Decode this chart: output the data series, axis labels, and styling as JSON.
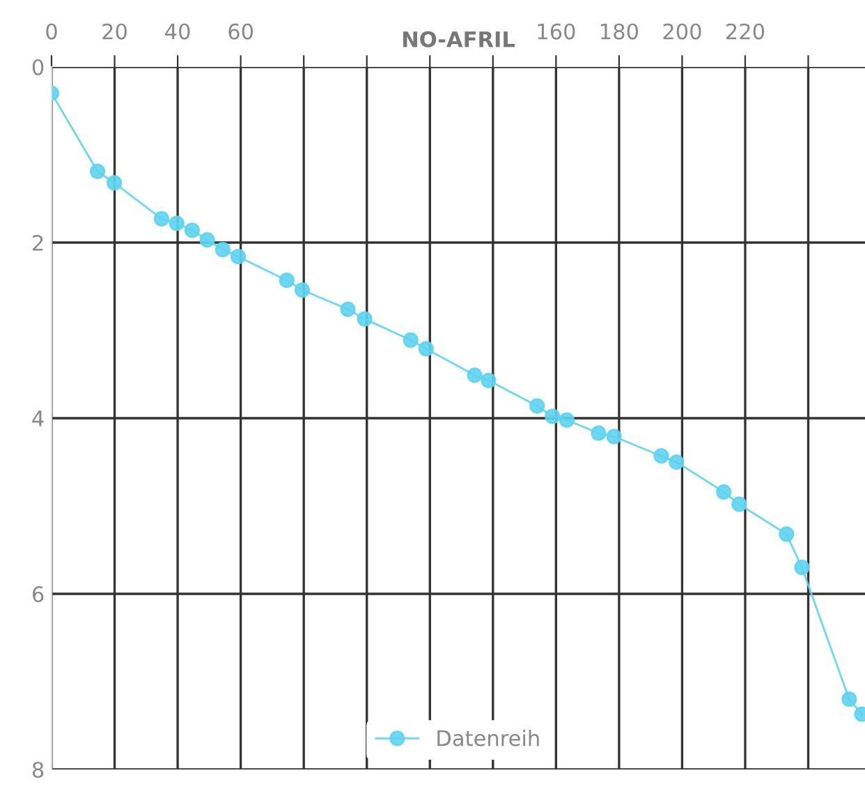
{
  "chart_data": {
    "type": "line",
    "title": "NO-AFRIL",
    "x": [
      0,
      14.6,
      19.9,
      34.9,
      39.7,
      44.6,
      49.4,
      54.3,
      59.2,
      74.6,
      79.5,
      94,
      99.3,
      113.9,
      118.8,
      134.2,
      138.6,
      154,
      158.9,
      163.4,
      173.5,
      178.4,
      193.4,
      198.2,
      213.2,
      218.1,
      233.1,
      238,
      253,
      257
    ],
    "series": [
      {
        "name": "Datenreih",
        "color": "#5fd3f0",
        "values": [
          0.3,
          1.19,
          1.32,
          1.73,
          1.78,
          1.86,
          1.97,
          2.08,
          2.16,
          2.43,
          2.54,
          2.76,
          2.87,
          3.11,
          3.21,
          3.51,
          3.57,
          3.86,
          3.98,
          4.02,
          4.17,
          4.21,
          4.43,
          4.5,
          4.84,
          4.98,
          5.32,
          5.7,
          7.2,
          7.37
        ]
      }
    ],
    "xlim": [
      0,
      258
    ],
    "xticks": [
      0,
      20,
      40,
      60,
      {
        "value": 80,
        "label": null
      },
      {
        "value": 100,
        "label": null
      },
      {
        "value": 120,
        "label": null
      },
      {
        "value": 140,
        "label": null
      },
      160,
      180,
      200,
      220,
      {
        "value": 240,
        "label": null
      }
    ],
    "ylim": [
      8,
      0
    ],
    "yticks": [
      0,
      2,
      4,
      6,
      8
    ],
    "grid": true,
    "legend": "bottom",
    "marker": "circle",
    "line_style": "solid"
  }
}
